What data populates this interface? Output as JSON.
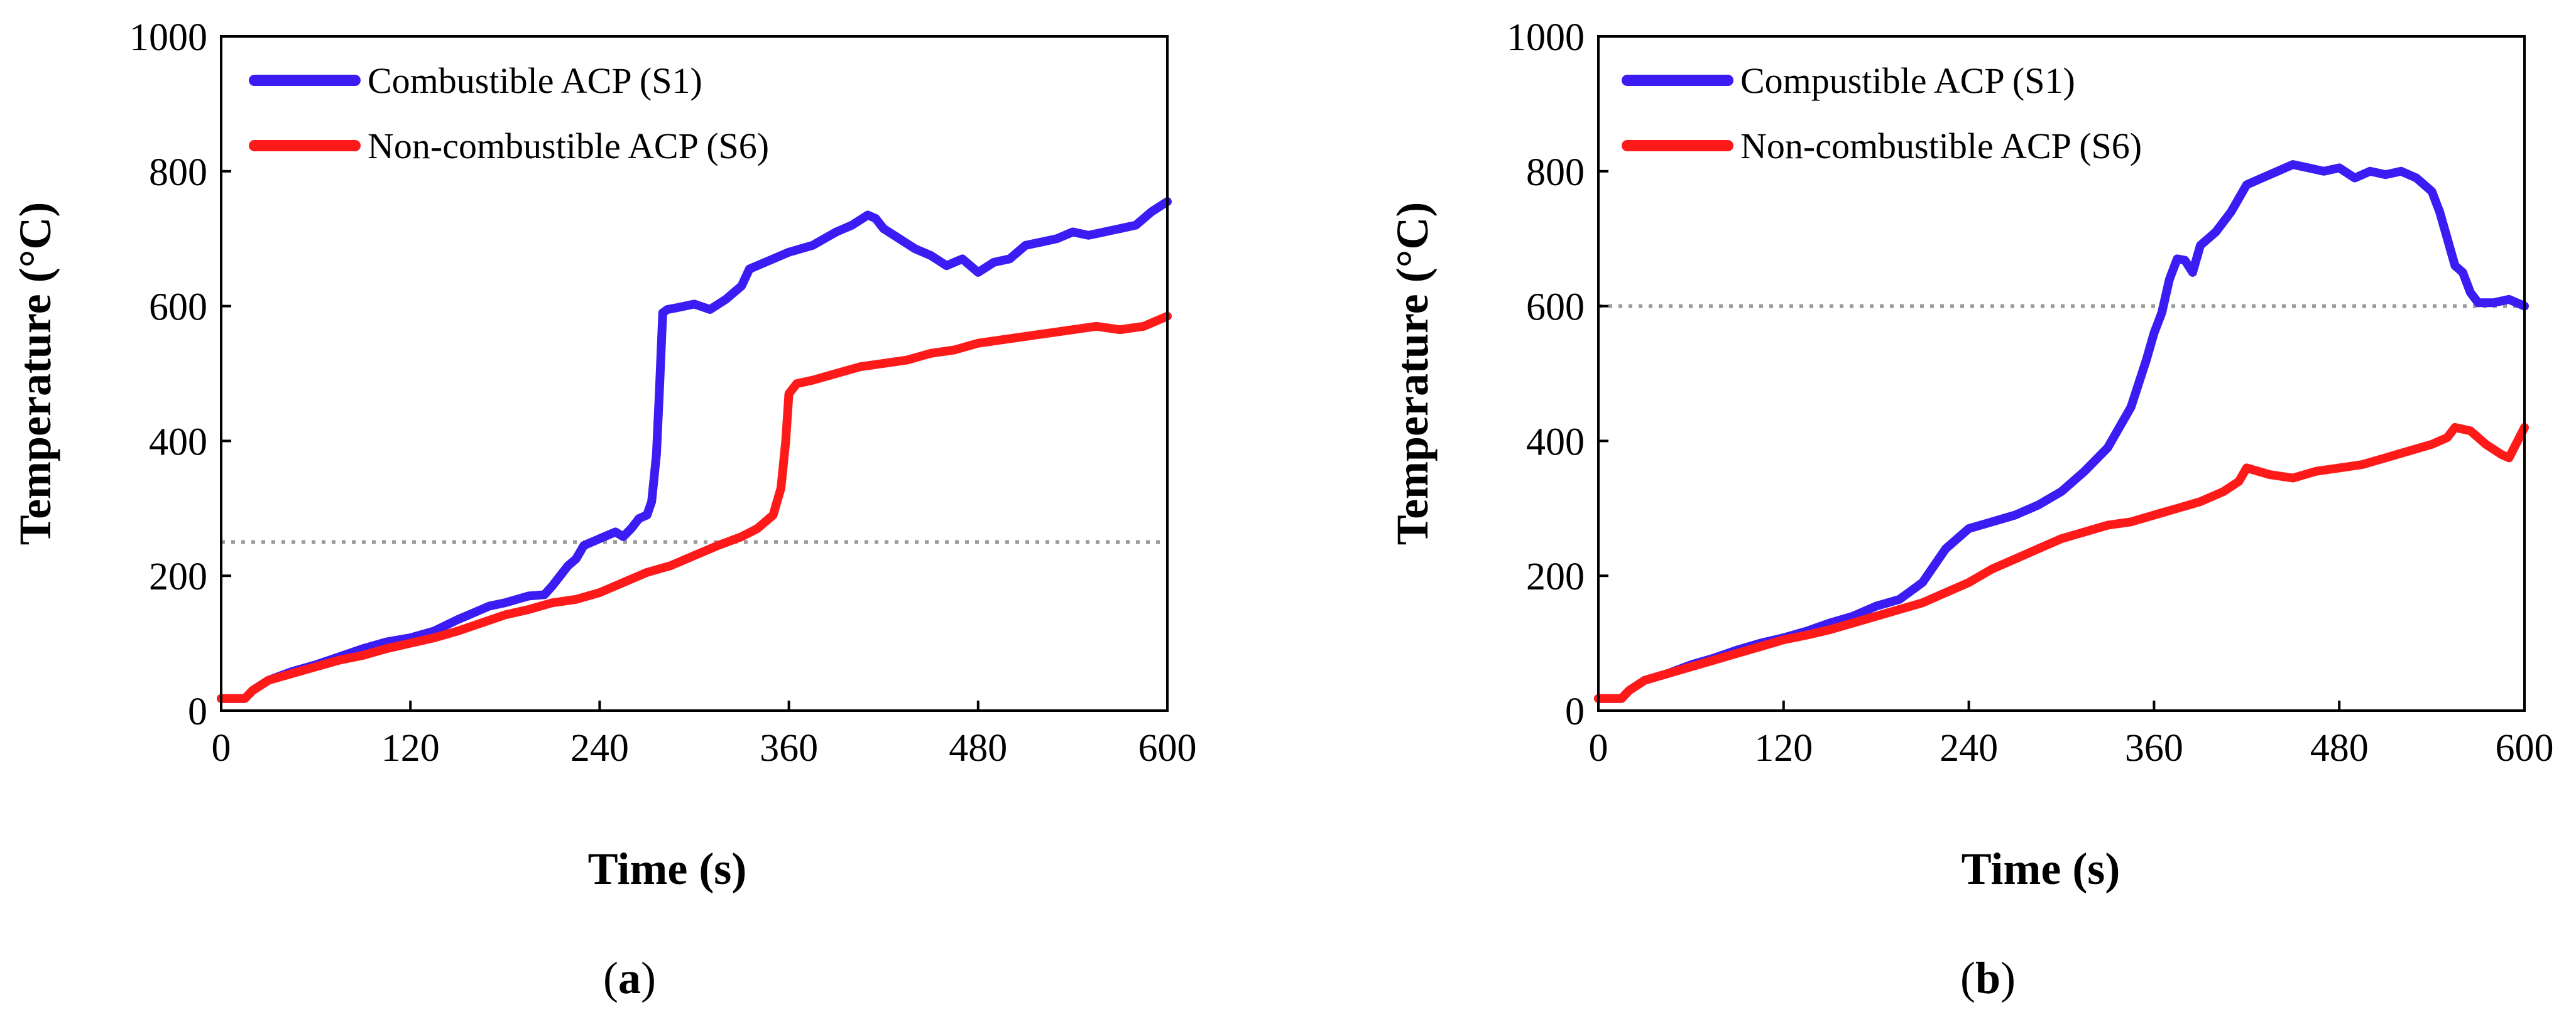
{
  "chart_data": [
    {
      "type": "line",
      "panel_label": "a",
      "xlabel": "Time (s)",
      "ylabel": "Temperature (°C)",
      "xlim": [
        0,
        600
      ],
      "ylim": [
        0,
        1000
      ],
      "xticks": [
        0,
        120,
        240,
        360,
        480,
        600
      ],
      "yticks": [
        0,
        200,
        400,
        600,
        800,
        1000
      ],
      "reference_line": 250,
      "legend": "top-left",
      "series": [
        {
          "name": "Combustible ACP (S1)",
          "color": "#3b1cf2",
          "x": [
            0,
            15,
            20,
            30,
            45,
            60,
            75,
            90,
            105,
            120,
            135,
            150,
            160,
            170,
            180,
            195,
            205,
            210,
            215,
            220,
            225,
            230,
            240,
            250,
            255,
            260,
            265,
            270,
            273,
            276,
            278,
            280,
            283,
            290,
            300,
            310,
            320,
            330,
            335,
            345,
            360,
            375,
            390,
            400,
            410,
            415,
            420,
            430,
            440,
            450,
            460,
            470,
            480,
            490,
            500,
            510,
            520,
            530,
            540,
            550,
            560,
            570,
            580,
            590,
            600
          ],
          "y": [
            18,
            18,
            30,
            45,
            58,
            68,
            80,
            92,
            102,
            108,
            118,
            135,
            145,
            155,
            160,
            170,
            172,
            185,
            200,
            215,
            225,
            245,
            255,
            265,
            258,
            270,
            285,
            290,
            310,
            380,
            480,
            590,
            595,
            598,
            603,
            595,
            610,
            630,
            655,
            665,
            680,
            690,
            710,
            720,
            735,
            730,
            715,
            700,
            685,
            675,
            660,
            670,
            650,
            665,
            670,
            690,
            695,
            700,
            710,
            705,
            710,
            715,
            720,
            740,
            755
          ]
        },
        {
          "name": "Non-combustible ACP (S6)",
          "color": "#ff1a1a",
          "x": [
            0,
            15,
            20,
            30,
            45,
            60,
            75,
            90,
            105,
            120,
            135,
            150,
            165,
            180,
            195,
            210,
            225,
            240,
            255,
            270,
            285,
            300,
            315,
            330,
            340,
            350,
            355,
            358,
            360,
            365,
            375,
            390,
            405,
            420,
            435,
            450,
            465,
            480,
            495,
            510,
            525,
            540,
            555,
            570,
            585,
            600
          ],
          "y": [
            18,
            18,
            30,
            45,
            55,
            65,
            75,
            82,
            92,
            100,
            108,
            118,
            130,
            142,
            150,
            160,
            165,
            175,
            190,
            205,
            215,
            230,
            245,
            258,
            270,
            290,
            330,
            400,
            470,
            485,
            490,
            500,
            510,
            515,
            520,
            530,
            535,
            545,
            550,
            555,
            560,
            565,
            570,
            565,
            570,
            585
          ]
        }
      ]
    },
    {
      "type": "line",
      "panel_label": "b",
      "xlabel": "Time (s)",
      "ylabel": "Temperature (°C)",
      "xlim": [
        0,
        600
      ],
      "ylim": [
        0,
        1000
      ],
      "xticks": [
        0,
        120,
        240,
        360,
        480,
        600
      ],
      "yticks": [
        0,
        200,
        400,
        600,
        800,
        1000
      ],
      "reference_line": 600,
      "legend": "top-left",
      "series": [
        {
          "name": "Compustible ACP (S1)",
          "color": "#3b1cf2",
          "x": [
            0,
            15,
            20,
            30,
            45,
            60,
            75,
            90,
            105,
            120,
            135,
            150,
            165,
            180,
            195,
            210,
            225,
            240,
            255,
            270,
            285,
            300,
            315,
            330,
            345,
            355,
            360,
            365,
            370,
            375,
            380,
            385,
            390,
            400,
            410,
            420,
            430,
            440,
            450,
            460,
            470,
            480,
            490,
            500,
            510,
            520,
            530,
            540,
            545,
            550,
            555,
            560,
            565,
            570,
            580,
            590,
            600
          ],
          "y": [
            18,
            18,
            30,
            45,
            55,
            68,
            78,
            90,
            100,
            108,
            118,
            130,
            140,
            155,
            165,
            190,
            240,
            270,
            280,
            290,
            305,
            325,
            355,
            390,
            450,
            520,
            560,
            590,
            640,
            670,
            668,
            650,
            690,
            710,
            740,
            780,
            790,
            800,
            810,
            805,
            800,
            805,
            790,
            800,
            795,
            800,
            790,
            770,
            740,
            700,
            660,
            650,
            620,
            605,
            605,
            610,
            600
          ]
        },
        {
          "name": "Non-combustible ACP (S6)",
          "color": "#ff1a1a",
          "x": [
            0,
            15,
            20,
            30,
            45,
            60,
            75,
            90,
            105,
            120,
            135,
            150,
            165,
            180,
            195,
            210,
            225,
            240,
            255,
            270,
            285,
            300,
            315,
            330,
            345,
            360,
            375,
            390,
            405,
            415,
            420,
            435,
            450,
            465,
            480,
            495,
            510,
            525,
            540,
            550,
            555,
            565,
            575,
            585,
            590,
            600
          ],
          "y": [
            18,
            18,
            30,
            45,
            55,
            65,
            75,
            85,
            95,
            105,
            112,
            120,
            130,
            140,
            150,
            160,
            175,
            190,
            210,
            225,
            240,
            255,
            265,
            275,
            280,
            290,
            300,
            310,
            325,
            340,
            360,
            350,
            345,
            355,
            360,
            365,
            375,
            385,
            395,
            405,
            420,
            415,
            395,
            380,
            375,
            420
          ]
        }
      ]
    }
  ]
}
